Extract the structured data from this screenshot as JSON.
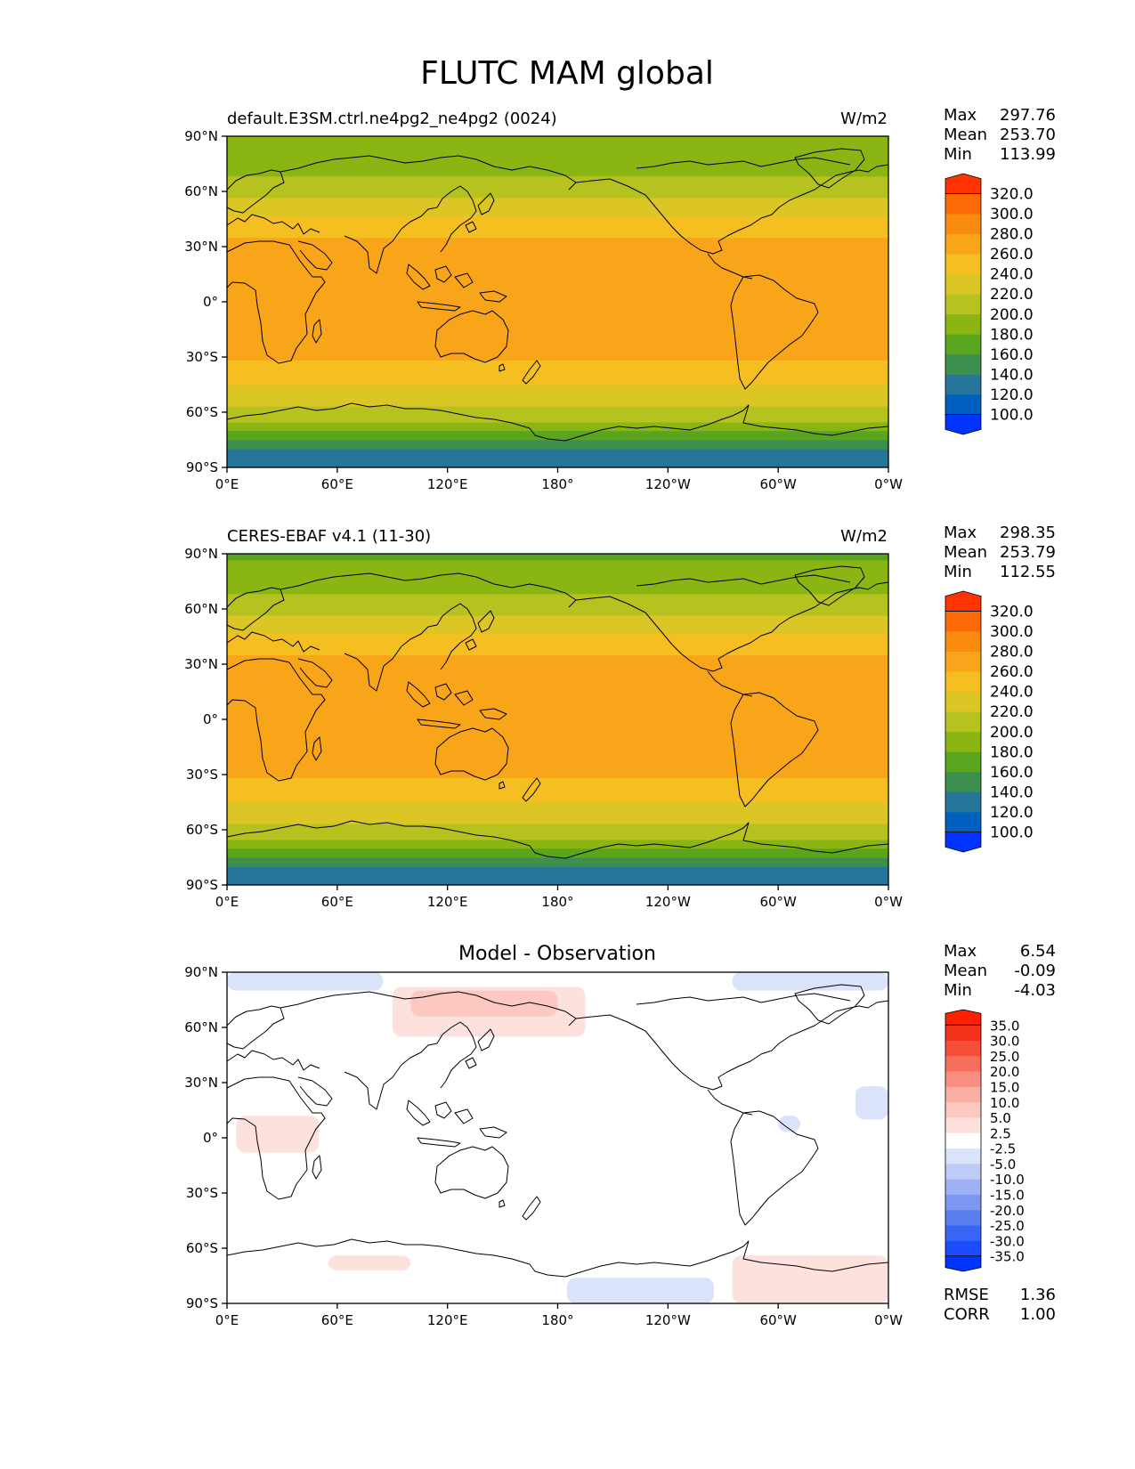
{
  "figure_title": "FLUTC MAM global",
  "lon_ticks": [
    "0°E",
    "60°E",
    "120°E",
    "180°",
    "120°W",
    "60°W",
    "0°W"
  ],
  "lat_ticks": [
    "90°N",
    "60°N",
    "30°N",
    "0°",
    "30°S",
    "60°S",
    "90°S"
  ],
  "stat_labels": {
    "max": "Max",
    "mean": "Mean",
    "min": "Min",
    "rmse": "RMSE",
    "corr": "CORR"
  },
  "chart_data": [
    {
      "type": "heatmap",
      "panel": "model",
      "title_left": "default.E3SM.ctrl.ne4pg2_ne4pg2 (0024)",
      "title_right": "W/m2",
      "stats": {
        "max": "297.76",
        "mean": "253.70",
        "min": "113.99"
      },
      "colorbar": {
        "levels": [
          "100.0",
          "120.0",
          "140.0",
          "160.0",
          "180.0",
          "200.0",
          "220.0",
          "240.0",
          "260.0",
          "280.0",
          "300.0",
          "320.0"
        ],
        "colors": [
          "#0033ff",
          "#0060c0",
          "#26759a",
          "#3d8f4e",
          "#5aa51e",
          "#8ab512",
          "#b5c21f",
          "#dcc625",
          "#f5be21",
          "#f9a51a",
          "#f98c10",
          "#fb6a05",
          "#ff3300"
        ],
        "extend": "both"
      },
      "xlim": [
        0,
        360
      ],
      "ylim": [
        -90,
        90
      ],
      "lat_profile": [
        {
          "lat": -90,
          "value": 120
        },
        {
          "lat": -80,
          "value": 138
        },
        {
          "lat": -74,
          "value": 165
        },
        {
          "lat": -68,
          "value": 190
        },
        {
          "lat": -60,
          "value": 215
        },
        {
          "lat": -50,
          "value": 232
        },
        {
          "lat": -40,
          "value": 248
        },
        {
          "lat": -30,
          "value": 262
        },
        {
          "lat": -20,
          "value": 271
        },
        {
          "lat": -10,
          "value": 273
        },
        {
          "lat": 0,
          "value": 270
        },
        {
          "lat": 10,
          "value": 274
        },
        {
          "lat": 20,
          "value": 276
        },
        {
          "lat": 30,
          "value": 268
        },
        {
          "lat": 40,
          "value": 252
        },
        {
          "lat": 50,
          "value": 232
        },
        {
          "lat": 60,
          "value": 214
        },
        {
          "lat": 70,
          "value": 198
        },
        {
          "lat": 80,
          "value": 185
        },
        {
          "lat": 90,
          "value": 180
        }
      ]
    },
    {
      "type": "heatmap",
      "panel": "observation",
      "title_left": "CERES-EBAF v4.1 (11-30)",
      "title_right": "W/m2",
      "stats": {
        "max": "298.35",
        "mean": "253.79",
        "min": "112.55"
      },
      "colorbar": {
        "levels": [
          "100.0",
          "120.0",
          "140.0",
          "160.0",
          "180.0",
          "200.0",
          "220.0",
          "240.0",
          "260.0",
          "280.0",
          "300.0",
          "320.0"
        ],
        "colors": [
          "#0033ff",
          "#0060c0",
          "#26759a",
          "#3d8f4e",
          "#5aa51e",
          "#8ab512",
          "#b5c21f",
          "#dcc625",
          "#f5be21",
          "#f9a51a",
          "#f98c10",
          "#fb6a05",
          "#ff3300"
        ],
        "extend": "both"
      },
      "xlim": [
        0,
        360
      ],
      "ylim": [
        -90,
        90
      ],
      "lat_profile": [
        {
          "lat": -90,
          "value": 120
        },
        {
          "lat": -80,
          "value": 138
        },
        {
          "lat": -74,
          "value": 165
        },
        {
          "lat": -68,
          "value": 190
        },
        {
          "lat": -60,
          "value": 215
        },
        {
          "lat": -50,
          "value": 232
        },
        {
          "lat": -40,
          "value": 248
        },
        {
          "lat": -30,
          "value": 262
        },
        {
          "lat": -20,
          "value": 271
        },
        {
          "lat": -10,
          "value": 273
        },
        {
          "lat": 0,
          "value": 271
        },
        {
          "lat": 10,
          "value": 275
        },
        {
          "lat": 20,
          "value": 276
        },
        {
          "lat": 30,
          "value": 268
        },
        {
          "lat": 40,
          "value": 252
        },
        {
          "lat": 50,
          "value": 232
        },
        {
          "lat": 60,
          "value": 214
        },
        {
          "lat": 70,
          "value": 196
        },
        {
          "lat": 80,
          "value": 183
        },
        {
          "lat": 90,
          "value": 178
        }
      ]
    },
    {
      "type": "heatmap",
      "panel": "difference",
      "title_center": "Model - Observation",
      "stats": {
        "max": "6.54",
        "mean": "-0.09",
        "min": "-4.03"
      },
      "metrics": {
        "rmse": "1.36",
        "corr": "1.00"
      },
      "colorbar": {
        "levels": [
          "-35.0",
          "-30.0",
          "-25.0",
          "-20.0",
          "-15.0",
          "-10.0",
          "-5.0",
          "-2.5",
          "2.5",
          "5.0",
          "10.0",
          "15.0",
          "20.0",
          "25.0",
          "30.0",
          "35.0"
        ],
        "colors": [
          "#0033ff",
          "#1d4cff",
          "#3a64f5",
          "#5c7ff0",
          "#7d98f0",
          "#9fb1f2",
          "#bfcbf7",
          "#dbe3fb",
          "#ffffff",
          "#fde1dd",
          "#fcc8c0",
          "#fbaea3",
          "#f98f80",
          "#f7705e",
          "#f54f3a",
          "#f33019",
          "#ff2200"
        ],
        "extend": "both"
      },
      "xlim": [
        0,
        360
      ],
      "ylim": [
        -90,
        90
      ],
      "anomalies": [
        {
          "lon": [
            0,
            85
          ],
          "lat": [
            80,
            90
          ],
          "sign": "negative"
        },
        {
          "lon": [
            90,
            195
          ],
          "lat": [
            55,
            82
          ],
          "sign": "positive"
        },
        {
          "lon": [
            275,
            360
          ],
          "lat": [
            80,
            90
          ],
          "sign": "negative"
        },
        {
          "lon": [
            5,
            50
          ],
          "lat": [
            -8,
            12
          ],
          "sign": "positive"
        },
        {
          "lon": [
            300,
            312
          ],
          "lat": [
            3,
            12
          ],
          "sign": "negative"
        },
        {
          "lon": [
            342,
            360
          ],
          "lat": [
            10,
            28
          ],
          "sign": "negative"
        },
        {
          "lon": [
            55,
            100
          ],
          "lat": [
            -72,
            -64
          ],
          "sign": "positive"
        },
        {
          "lon": [
            185,
            265
          ],
          "lat": [
            -90,
            -76
          ],
          "sign": "negative"
        },
        {
          "lon": [
            275,
            360
          ],
          "lat": [
            -90,
            -64
          ],
          "sign": "positive"
        }
      ]
    }
  ]
}
